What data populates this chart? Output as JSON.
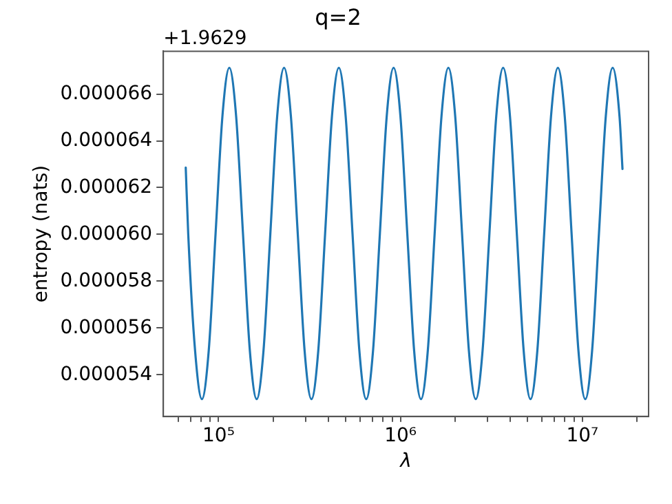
{
  "chart_data": {
    "type": "line",
    "title": "q=2",
    "xlabel": "λ",
    "ylabel": "entropy (nats)",
    "annotations": [
      "+1.9629"
    ],
    "log": "x",
    "grid": false,
    "legend": false,
    "marker": "none",
    "line_style": "solid",
    "xlim": [
      49700,
      23100000
    ],
    "xticks": [
      {
        "value": 60000,
        "label": null
      },
      {
        "value": 70000,
        "label": null
      },
      {
        "value": 80000,
        "label": null
      },
      {
        "value": 90000,
        "label": null
      },
      {
        "value": 100000,
        "label": "10⁵"
      },
      {
        "value": 200000,
        "label": null
      },
      {
        "value": 300000,
        "label": null
      },
      {
        "value": 400000,
        "label": null
      },
      {
        "value": 500000,
        "label": null
      },
      {
        "value": 600000,
        "label": null
      },
      {
        "value": 700000,
        "label": null
      },
      {
        "value": 800000,
        "label": null
      },
      {
        "value": 900000,
        "label": null
      },
      {
        "value": 1000000,
        "label": "10⁶"
      },
      {
        "value": 2000000,
        "label": null
      },
      {
        "value": 3000000,
        "label": null
      },
      {
        "value": 4000000,
        "label": null
      },
      {
        "value": 5000000,
        "label": null
      },
      {
        "value": 6000000,
        "label": null
      },
      {
        "value": 7000000,
        "label": null
      },
      {
        "value": 8000000,
        "label": null
      },
      {
        "value": 9000000,
        "label": null
      },
      {
        "value": 10000000,
        "label": "10⁷"
      },
      {
        "value": 20000000,
        "label": null
      }
    ],
    "ylim": [
      5.222e-05,
      6.783e-05
    ],
    "yticks": [
      {
        "value": 5.4e-05,
        "label": "0.000054"
      },
      {
        "value": 5.6e-05,
        "label": "0.000056"
      },
      {
        "value": 5.8e-05,
        "label": "0.000058"
      },
      {
        "value": 6e-05,
        "label": "0.000060"
      },
      {
        "value": 6.2e-05,
        "label": "0.000062"
      },
      {
        "value": 6.4e-05,
        "label": "0.000064"
      },
      {
        "value": 6.6e-05,
        "label": "0.000066"
      }
    ],
    "series": [
      {
        "color": "#1f77b4",
        "x": [
          66000,
          68100,
          74300,
          81000,
          88300,
          96300,
          105000,
          114600,
          124900,
          136200,
          148600,
          162000,
          176600,
          192600,
          210000,
          229100,
          249800,
          272400,
          297100,
          324000,
          353200,
          385200,
          420000,
          458200,
          499600,
          544800,
          594200,
          648000,
          706400,
          770400,
          840000,
          916400,
          999200,
          1089600,
          1188400,
          1296000,
          1412800,
          1540800,
          1680000,
          1832800,
          1998400,
          2179200,
          2376800,
          2592000,
          2825600,
          3081600,
          3360000,
          3665600,
          3996800,
          4358400,
          4753600,
          5184000,
          5651200,
          6163200,
          6720000,
          7331200,
          7993600,
          8716800,
          9507200,
          10368000,
          11302000,
          12326000,
          13440000,
          14662000,
          15987000,
          16600000
        ],
        "values": [
          6.286e-05,
          6.004e-05,
          5.503e-05,
          5.296e-05,
          5.503e-05,
          6.004e-05,
          6.505e-05,
          6.712e-05,
          6.505e-05,
          6.004e-05,
          5.503e-05,
          5.296e-05,
          5.503e-05,
          6.004e-05,
          6.505e-05,
          6.712e-05,
          6.505e-05,
          6.004e-05,
          5.503e-05,
          5.296e-05,
          5.503e-05,
          6.004e-05,
          6.505e-05,
          6.712e-05,
          6.505e-05,
          6.004e-05,
          5.503e-05,
          5.296e-05,
          5.503e-05,
          6.004e-05,
          6.505e-05,
          6.712e-05,
          6.505e-05,
          6.004e-05,
          5.503e-05,
          5.296e-05,
          5.503e-05,
          6.004e-05,
          6.505e-05,
          6.712e-05,
          6.505e-05,
          6.004e-05,
          5.503e-05,
          5.296e-05,
          5.503e-05,
          6.004e-05,
          6.505e-05,
          6.712e-05,
          6.505e-05,
          6.004e-05,
          5.503e-05,
          5.296e-05,
          5.503e-05,
          6.004e-05,
          6.505e-05,
          6.712e-05,
          6.505e-05,
          6.004e-05,
          5.503e-05,
          5.296e-05,
          5.503e-05,
          6.004e-05,
          6.505e-05,
          6.712e-05,
          6.505e-05,
          6.28e-05
        ]
      }
    ]
  }
}
